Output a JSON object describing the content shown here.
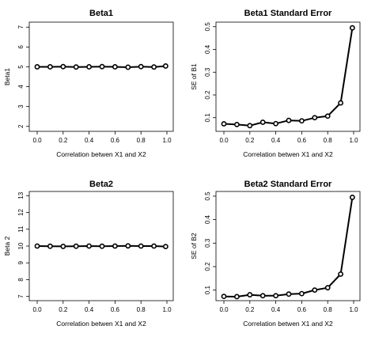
{
  "chart_data": [
    {
      "type": "line",
      "title": "Beta1",
      "xlabel": "Correlation betwen X1 and X2",
      "ylabel": "Beta1",
      "xlim": [
        0.0,
        1.0
      ],
      "ylim": [
        1.75,
        7.25
      ],
      "x_ticks": [
        "0.0",
        "0.2",
        "0.4",
        "0.6",
        "0.8",
        "1.0"
      ],
      "y_ticks": [
        "2",
        "3",
        "4",
        "5",
        "6",
        "7"
      ],
      "x": [
        0.0,
        0.1,
        0.2,
        0.3,
        0.4,
        0.5,
        0.6,
        0.7,
        0.8,
        0.9,
        0.99
      ],
      "values": [
        5.0,
        5.0,
        5.01,
        4.99,
        5.0,
        5.01,
        5.0,
        4.98,
        5.01,
        4.99,
        5.04
      ]
    },
    {
      "type": "line",
      "title": "Beta1 Standard Error",
      "xlabel": "Correlation betwen X1 and X2",
      "ylabel": "SE of B1",
      "xlim": [
        0.0,
        1.0
      ],
      "ylim": [
        0.04,
        0.52
      ],
      "x_ticks": [
        "0.0",
        "0.2",
        "0.4",
        "0.6",
        "0.8",
        "1.0"
      ],
      "y_ticks": [
        "0.1",
        "0.2",
        "0.3",
        "0.4",
        "0.5"
      ],
      "x": [
        0.0,
        0.1,
        0.2,
        0.3,
        0.4,
        0.5,
        0.6,
        0.7,
        0.8,
        0.9,
        0.99
      ],
      "values": [
        0.073,
        0.07,
        0.065,
        0.08,
        0.074,
        0.088,
        0.086,
        0.1,
        0.107,
        0.165,
        0.495
      ]
    },
    {
      "type": "line",
      "title": "Beta2",
      "xlabel": "Correlation betwen X1 and X2",
      "ylabel": "Beta 2",
      "xlim": [
        0.0,
        1.0
      ],
      "ylim": [
        6.75,
        13.25
      ],
      "x_ticks": [
        "0.0",
        "0.2",
        "0.4",
        "0.6",
        "0.8",
        "1.0"
      ],
      "y_ticks": [
        "7",
        "8",
        "9",
        "10",
        "11",
        "12",
        "13"
      ],
      "x": [
        0.0,
        0.1,
        0.2,
        0.3,
        0.4,
        0.5,
        0.6,
        0.7,
        0.8,
        0.9,
        0.99
      ],
      "values": [
        10.0,
        9.99,
        9.98,
        9.99,
        10.0,
        9.99,
        10.0,
        10.01,
        10.0,
        10.0,
        9.97
      ]
    },
    {
      "type": "line",
      "title": "Beta2 Standard Error",
      "xlabel": "Correlation betwen X1 and X2",
      "ylabel": "SE of B2",
      "xlim": [
        0.0,
        1.0
      ],
      "ylim": [
        0.055,
        0.52
      ],
      "x_ticks": [
        "0.0",
        "0.2",
        "0.4",
        "0.6",
        "0.8",
        "1.0"
      ],
      "y_ticks": [
        "0.1",
        "0.2",
        "0.3",
        "0.4",
        "0.5"
      ],
      "x": [
        0.0,
        0.1,
        0.2,
        0.3,
        0.4,
        0.5,
        0.6,
        0.7,
        0.8,
        0.9,
        0.99
      ],
      "values": [
        0.073,
        0.072,
        0.08,
        0.076,
        0.076,
        0.083,
        0.085,
        0.1,
        0.11,
        0.168,
        0.495
      ]
    }
  ]
}
